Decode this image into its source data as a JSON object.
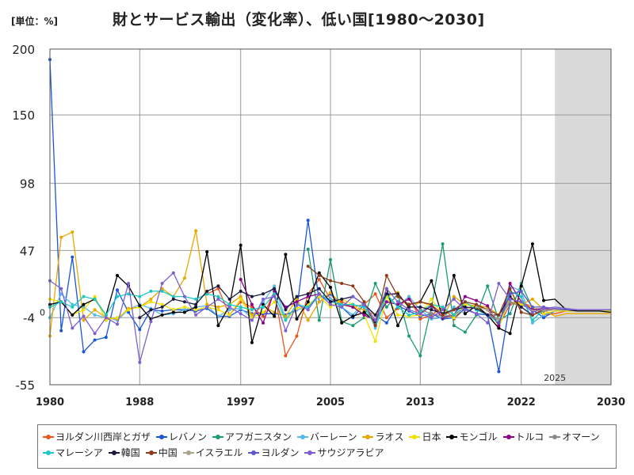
{
  "header": {
    "unit_label": "[単位：%]",
    "title": "財とサービス輸出（変化率）、低い国[1980～2030]"
  },
  "chart_data": {
    "type": "line",
    "yticks": [
      200,
      150,
      98,
      47,
      -4,
      -55
    ],
    "ylim": [
      -55,
      200
    ],
    "zero_label": "0",
    "xlim": [
      1980,
      2030
    ],
    "xticks": [
      1980,
      1988,
      1997,
      2005,
      2013,
      2022,
      2030
    ],
    "forecast_start": 2025,
    "forecast_label": "2025",
    "grid": true,
    "legend_position": "bottom",
    "x": [
      1980,
      1981,
      1982,
      1983,
      1984,
      1985,
      1986,
      1987,
      1988,
      1989,
      1990,
      1991,
      1992,
      1993,
      1994,
      1995,
      1996,
      1997,
      1998,
      1999,
      2000,
      2001,
      2002,
      2003,
      2004,
      2005,
      2006,
      2007,
      2008,
      2009,
      2010,
      2011,
      2012,
      2013,
      2014,
      2015,
      2016,
      2017,
      2018,
      2019,
      2020,
      2021,
      2022,
      2023,
      2024,
      2025,
      2026,
      2027,
      2028,
      2029,
      2030
    ],
    "series": [
      {
        "name": "ヨルダン川西岸とガザ",
        "color": "#e8561c",
        "values": [
          null,
          null,
          null,
          null,
          null,
          null,
          null,
          null,
          null,
          null,
          null,
          null,
          null,
          null,
          14,
          18,
          -2,
          8,
          4,
          -3,
          16,
          -33,
          -18,
          14,
          25,
          10,
          8,
          4,
          6,
          14,
          -4,
          3,
          12,
          -5,
          -2,
          4,
          -5,
          3,
          5,
          2,
          -10,
          6,
          8,
          4,
          -2,
          -1,
          1,
          1,
          1,
          1,
          1
        ]
      },
      {
        "name": "レバノン",
        "color": "#1a56d6",
        "values": [
          192,
          -14,
          42,
          -30,
          -21,
          -19,
          17,
          0,
          -13,
          2,
          1,
          2,
          2,
          1,
          3,
          -3,
          -3,
          2,
          -1,
          -1,
          -1,
          -2,
          2,
          70,
          8,
          14,
          4,
          -4,
          6,
          -2,
          -8,
          5,
          1,
          -3,
          -1,
          -5,
          -4,
          3,
          -1,
          -2,
          -45,
          8,
          6,
          2,
          -4,
          1,
          1,
          1,
          1,
          1,
          1
        ]
      },
      {
        "name": "アフガニスタン",
        "color": "#199c73",
        "values": [
          null,
          null,
          null,
          null,
          null,
          null,
          null,
          null,
          null,
          null,
          null,
          null,
          null,
          null,
          null,
          null,
          null,
          null,
          null,
          null,
          null,
          null,
          null,
          48,
          -6,
          40,
          -7,
          -10,
          -4,
          22,
          4,
          14,
          -18,
          -33,
          4,
          52,
          -10,
          -15,
          -2,
          20,
          -6,
          -1,
          22,
          3,
          2,
          2,
          2,
          2,
          2,
          2,
          2
        ]
      },
      {
        "name": "バーレーン",
        "color": "#55b8ee",
        "values": [
          -4,
          14,
          6,
          4,
          -2,
          -4,
          -6,
          2,
          6,
          3,
          -2,
          -1,
          2,
          4,
          5,
          -3,
          2,
          3,
          -4,
          8,
          20,
          -5,
          2,
          4,
          12,
          10,
          4,
          -2,
          8,
          -12,
          12,
          5,
          12,
          2,
          -5,
          -4,
          4,
          -1,
          5,
          -2,
          -12,
          20,
          16,
          -8,
          -2,
          1,
          1,
          1,
          1,
          1,
          1
        ]
      },
      {
        "name": "ラオス",
        "color": "#e8a800",
        "values": [
          -18,
          57,
          61,
          -6,
          2,
          -4,
          -5,
          3,
          4,
          10,
          18,
          12,
          26,
          62,
          6,
          4,
          6,
          12,
          -2,
          5,
          0,
          -3,
          10,
          -6,
          8,
          15,
          6,
          4,
          2,
          -2,
          12,
          15,
          3,
          8,
          5,
          -4,
          12,
          6,
          5,
          4,
          -2,
          8,
          6,
          10,
          2,
          -3,
          -1,
          -1,
          -1,
          -1,
          -1
        ]
      },
      {
        "name": "日本",
        "color": "#f2e100",
        "values": [
          10,
          8,
          -2,
          2,
          12,
          -6,
          -4,
          2,
          4,
          8,
          6,
          2,
          4,
          2,
          4,
          2,
          -2,
          10,
          -4,
          0,
          8,
          -6,
          3,
          6,
          12,
          4,
          10,
          6,
          -2,
          -22,
          12,
          -2,
          -3,
          -2,
          10,
          -2,
          -4,
          6,
          4,
          -2,
          -12,
          12,
          6,
          4,
          -1,
          1,
          1,
          1,
          1,
          1,
          1
        ]
      },
      {
        "name": "モンゴル",
        "color": "#000000",
        "values": [
          6,
          8,
          -2,
          6,
          10,
          -2,
          28,
          20,
          5,
          -5,
          -2,
          0,
          0,
          4,
          46,
          -10,
          5,
          51,
          -23,
          6,
          -3,
          44,
          -5,
          8,
          30,
          19,
          -8,
          -3,
          0,
          -7,
          18,
          -10,
          6,
          8,
          24,
          -4,
          28,
          -1,
          5,
          -2,
          -12,
          -16,
          20,
          52,
          9,
          10,
          2,
          1,
          1,
          1,
          0
        ]
      },
      {
        "name": "トルコ",
        "color": "#8b008b",
        "values": [
          null,
          null,
          null,
          null,
          null,
          null,
          null,
          null,
          null,
          null,
          null,
          null,
          null,
          null,
          null,
          null,
          null,
          25,
          6,
          -8,
          16,
          4,
          8,
          12,
          14,
          8,
          6,
          4,
          -2,
          -6,
          8,
          6,
          10,
          -1,
          5,
          -4,
          -2,
          12,
          9,
          5,
          -10,
          22,
          8,
          2,
          3,
          2,
          2,
          2,
          2,
          2,
          2
        ]
      },
      {
        "name": "オマーン",
        "color": "#888888",
        "values": [
          null,
          null,
          null,
          null,
          null,
          null,
          null,
          null,
          null,
          null,
          null,
          null,
          null,
          null,
          null,
          null,
          null,
          null,
          null,
          null,
          null,
          null,
          null,
          null,
          null,
          null,
          null,
          null,
          null,
          null,
          null,
          null,
          null,
          2,
          -1,
          -3,
          -2,
          4,
          3,
          -2,
          -6,
          8,
          4,
          -2,
          1,
          2,
          2,
          2,
          2,
          2,
          2
        ]
      },
      {
        "name": "マレーシア",
        "color": "#1cc8c4",
        "values": [
          4,
          8,
          4,
          12,
          10,
          -2,
          12,
          14,
          12,
          16,
          16,
          12,
          12,
          10,
          14,
          12,
          6,
          4,
          2,
          4,
          14,
          -6,
          6,
          4,
          14,
          8,
          6,
          6,
          4,
          -10,
          14,
          4,
          -2,
          0,
          6,
          4,
          -2,
          8,
          2,
          -2,
          -8,
          16,
          12,
          -6,
          2,
          2,
          2,
          2,
          2,
          2,
          2
        ]
      },
      {
        "name": "韓国",
        "color": "#1a1a40",
        "values": [
          null,
          null,
          null,
          null,
          null,
          null,
          null,
          null,
          -4,
          2,
          4,
          10,
          8,
          6,
          16,
          20,
          10,
          16,
          12,
          14,
          18,
          2,
          12,
          14,
          18,
          8,
          10,
          12,
          6,
          -2,
          14,
          14,
          4,
          4,
          2,
          -1,
          2,
          4,
          3,
          -2,
          -2,
          12,
          4,
          -2,
          2,
          2,
          2,
          2,
          2,
          2,
          2
        ]
      },
      {
        "name": "中国",
        "color": "#8b3a1a",
        "values": [
          null,
          null,
          null,
          null,
          null,
          null,
          null,
          null,
          null,
          null,
          null,
          null,
          null,
          null,
          null,
          null,
          null,
          null,
          null,
          null,
          null,
          null,
          null,
          35,
          28,
          24,
          22,
          20,
          8,
          -10,
          28,
          12,
          6,
          8,
          6,
          -2,
          2,
          8,
          6,
          2,
          -2,
          18,
          0,
          -2,
          2,
          2,
          2,
          2,
          2,
          2,
          2
        ]
      },
      {
        "name": "イスラエル",
        "color": "#aaa58a",
        "values": [
          null,
          null,
          null,
          null,
          null,
          null,
          null,
          null,
          null,
          null,
          null,
          null,
          null,
          null,
          null,
          null,
          null,
          null,
          null,
          null,
          null,
          null,
          null,
          null,
          null,
          null,
          null,
          null,
          null,
          null,
          null,
          null,
          null,
          null,
          null,
          null,
          null,
          null,
          4,
          2,
          -6,
          10,
          8,
          1,
          2,
          2,
          2,
          2,
          2,
          2,
          2
        ]
      },
      {
        "name": "ヨルダン",
        "color": "#5a55cc",
        "values": [
          null,
          null,
          null,
          null,
          null,
          null,
          null,
          null,
          null,
          null,
          null,
          null,
          null,
          null,
          null,
          null,
          null,
          null,
          null,
          null,
          null,
          null,
          null,
          null,
          null,
          null,
          null,
          null,
          null,
          null,
          null,
          null,
          null,
          null,
          null,
          null,
          null,
          null,
          null,
          null,
          -8,
          14,
          16,
          4,
          4,
          3,
          2,
          2,
          2,
          2,
          2
        ]
      },
      {
        "name": "サウジアラビア",
        "color": "#7f5ecf",
        "values": [
          24,
          18,
          -12,
          -3,
          -16,
          -4,
          -9,
          22,
          -38,
          -7,
          22,
          30,
          12,
          -2,
          4,
          10,
          4,
          -1,
          -6,
          10,
          12,
          -14,
          6,
          2,
          14,
          6,
          4,
          12,
          6,
          -6,
          18,
          8,
          2,
          -1,
          -4,
          2,
          10,
          2,
          -1,
          -8,
          22,
          10,
          8,
          0,
          3,
          4,
          3,
          2,
          2,
          2,
          2
        ]
      }
    ]
  }
}
